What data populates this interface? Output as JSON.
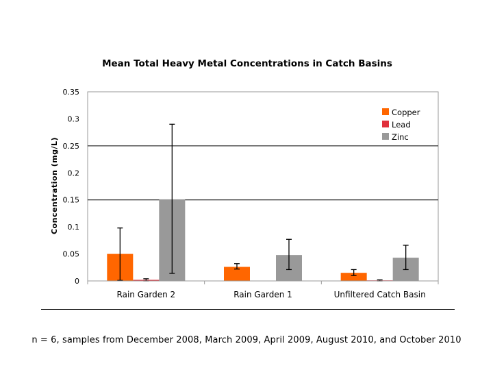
{
  "chart_data": {
    "type": "bar",
    "title": "Mean Total Heavy Metal Concentrations in Catch Basins",
    "xlabel": "",
    "ylabel": "Concentration (mg/L)",
    "ylim": [
      0,
      0.35
    ],
    "yticks": [
      "0",
      "0.05",
      "0.1",
      "0.15",
      "0.2",
      "0.25",
      "0.3",
      "0.35"
    ],
    "ytick_values": [
      0,
      0.05,
      0.1,
      0.15,
      0.2,
      0.25,
      0.3,
      0.35
    ],
    "gridlines": [
      0.15,
      0.25
    ],
    "legend_position": "top-right",
    "categories": [
      "Rain Garden 2",
      "Rain Garden 1",
      "Unfiltered Catch Basin"
    ],
    "series": [
      {
        "name": "Copper",
        "color": "#ff6600",
        "values": [
          0.05,
          0.026,
          0.015
        ],
        "error_low": [
          0.001,
          0.022,
          0.01
        ],
        "error_high": [
          0.098,
          0.032,
          0.021
        ]
      },
      {
        "name": "Lead",
        "color": "#e0303c",
        "values": [
          0.002,
          0.0,
          0.001
        ],
        "error_low": [
          0.0,
          0.0,
          0.0
        ],
        "error_high": [
          0.004,
          0.0,
          0.002
        ]
      },
      {
        "name": "Zinc",
        "color": "#999999",
        "values": [
          0.151,
          0.048,
          0.043
        ],
        "error_low": [
          0.014,
          0.021,
          0.021
        ],
        "error_high": [
          0.29,
          0.077,
          0.066
        ]
      }
    ]
  },
  "caption": "n = 6, samples from December 2008, March 2009, April 2009, August 2010, and October 2010"
}
